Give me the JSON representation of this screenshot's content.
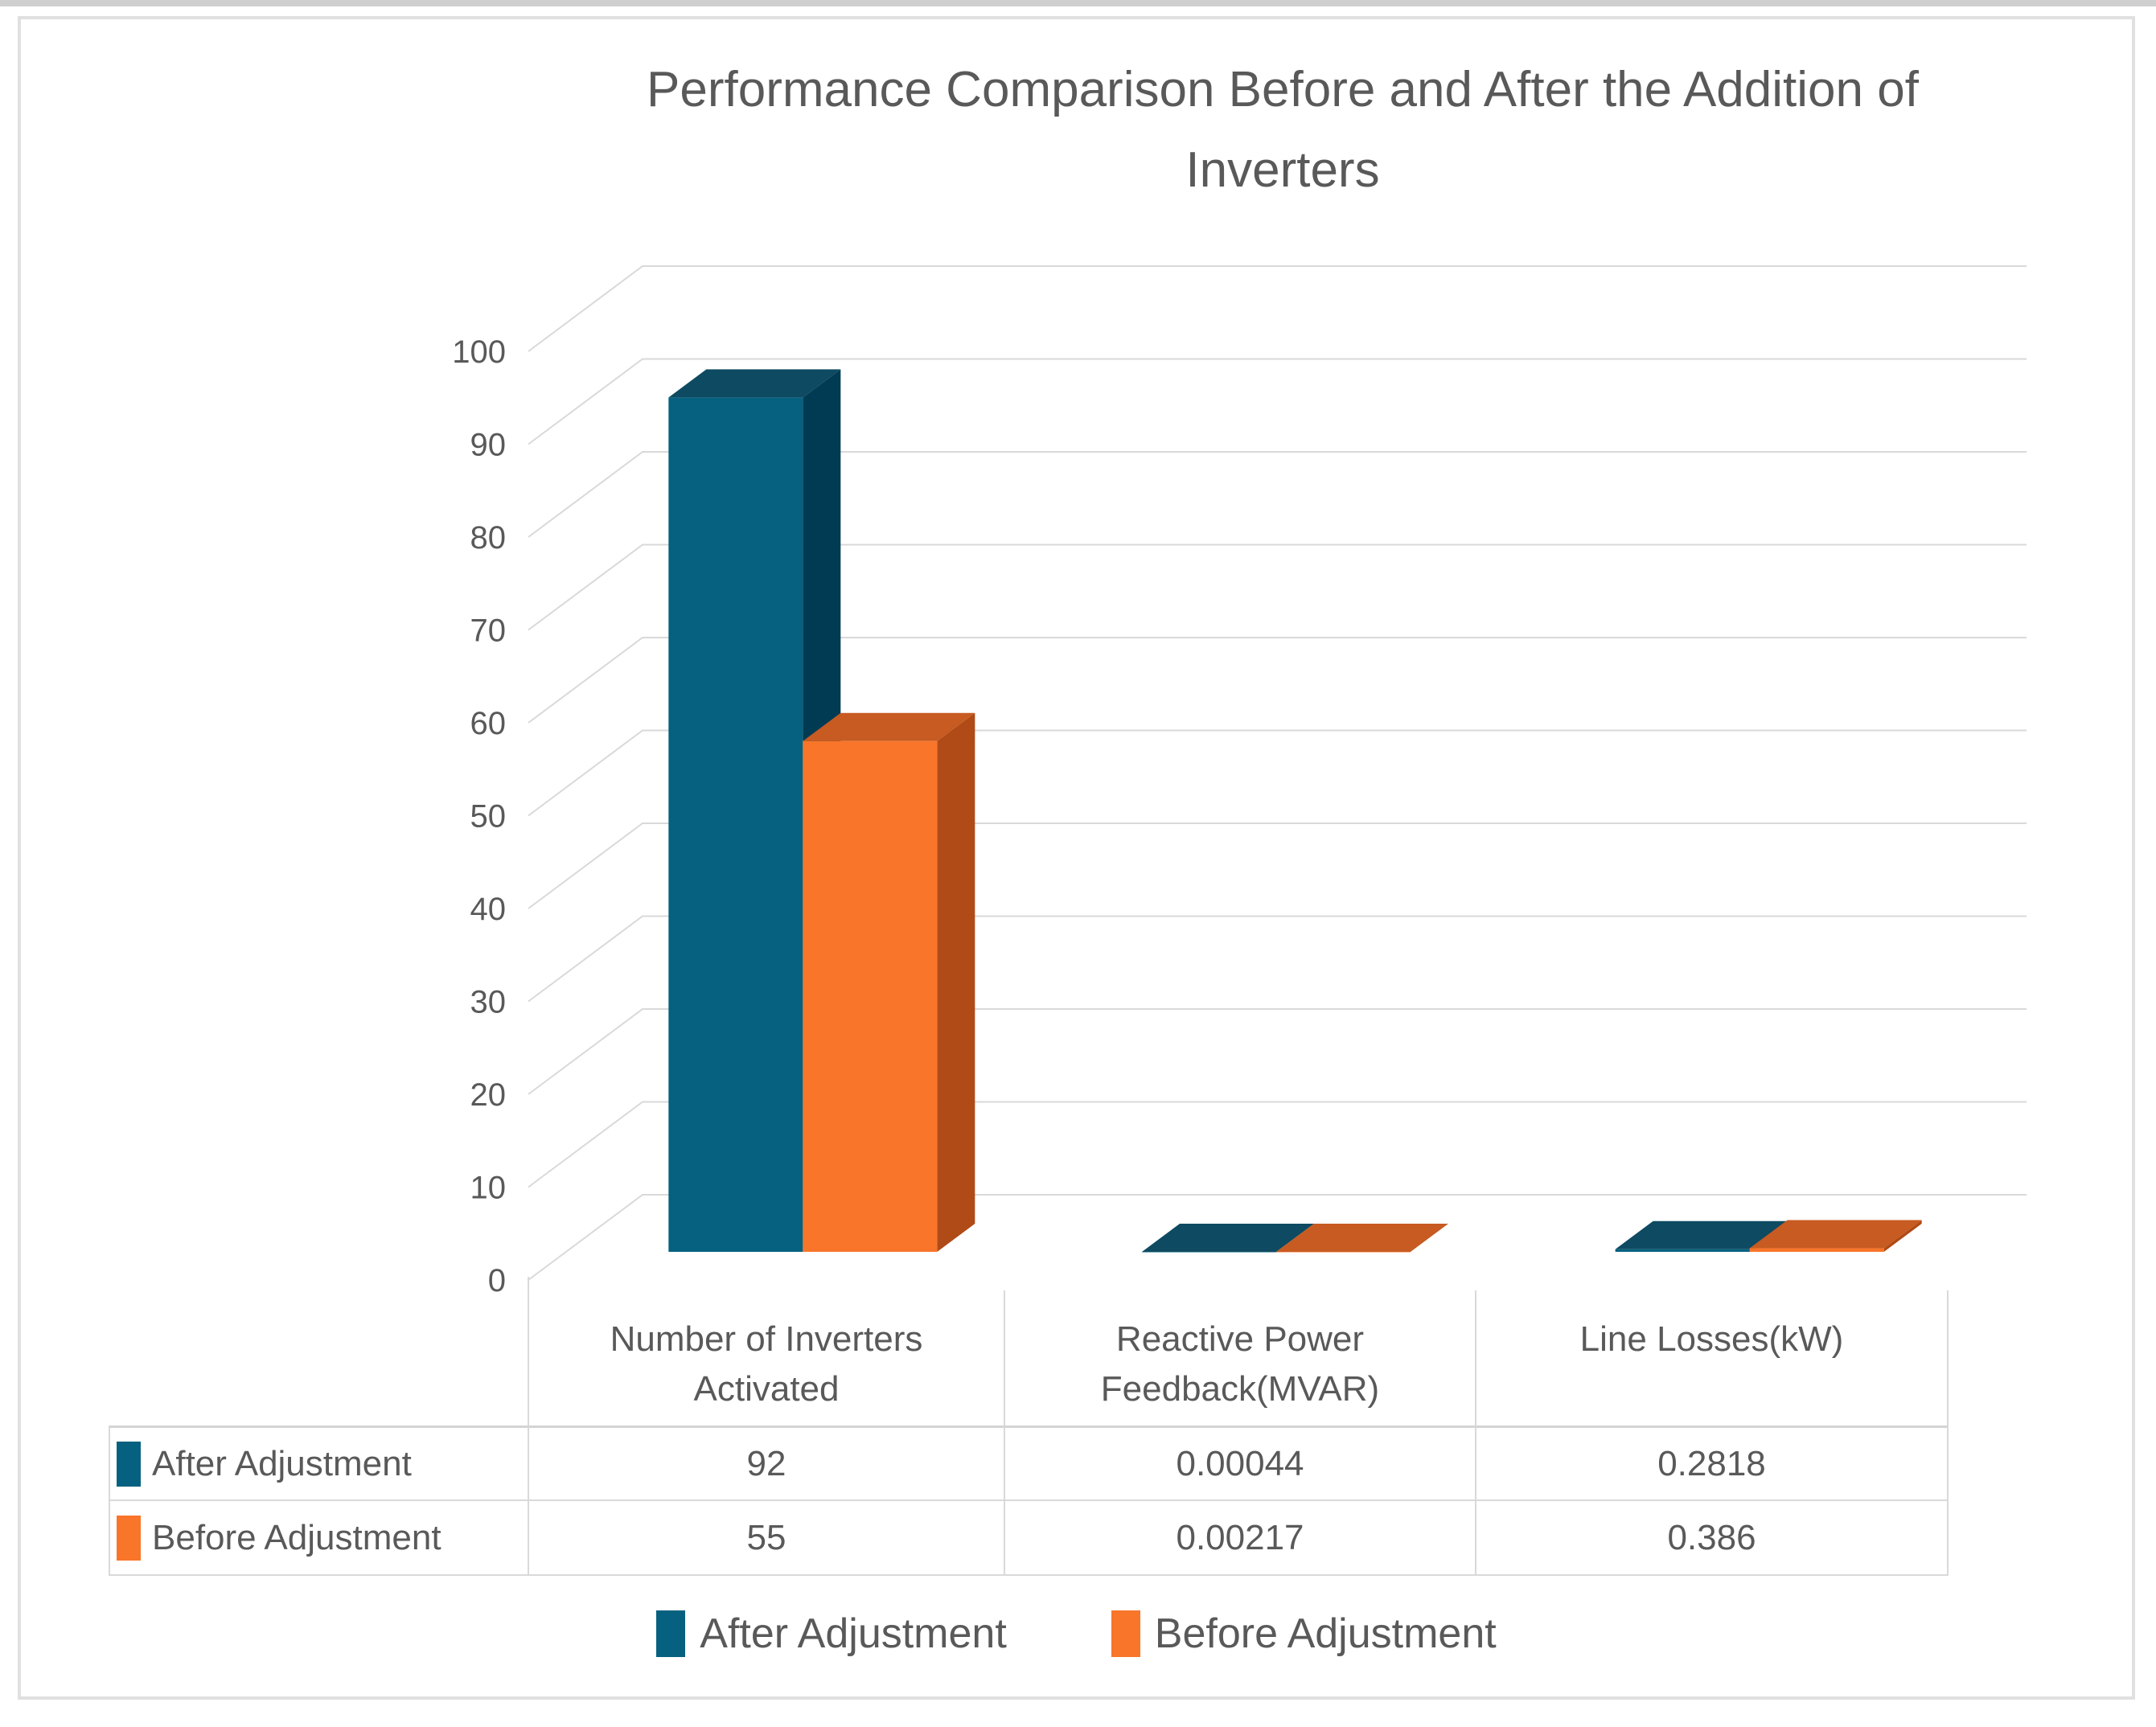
{
  "title": "Performance Comparison Before and After the Addition of Inverters",
  "chart_data": {
    "type": "bar",
    "projection": "3d",
    "title": "Performance Comparison Before and After the Addition of Inverters",
    "categories": [
      "Number of Inverters Activated",
      "Reactive Power Feedback(MVAR)",
      "Line Losses(kW)"
    ],
    "series": [
      {
        "name": "After Adjustment",
        "color": "#05617F",
        "color_top": "#0E4A61",
        "color_side": "#003B53",
        "values": [
          92,
          0.00044,
          0.2818
        ]
      },
      {
        "name": "Before Adjustment",
        "color": "#F8752A",
        "color_top": "#C75B22",
        "color_side": "#B04A16",
        "values": [
          55,
          0.00217,
          0.386
        ]
      }
    ],
    "table_values": [
      [
        "92",
        "0.00044",
        "0.2818"
      ],
      [
        "55",
        "0.00217",
        "0.386"
      ]
    ],
    "ylim": [
      0,
      100
    ],
    "ytick_step": 10,
    "ytick_labels": [
      "0",
      "10",
      "20",
      "30",
      "40",
      "50",
      "60",
      "70",
      "80",
      "90",
      "100"
    ],
    "grid": true,
    "legend_position": "bottom",
    "axis_text_color": "#595959",
    "gridline_color": "#D9D9D9"
  },
  "legend": {
    "items": [
      {
        "label": "After Adjustment",
        "color": "#05617F"
      },
      {
        "label": "Before Adjustment",
        "color": "#F8752A"
      }
    ]
  }
}
